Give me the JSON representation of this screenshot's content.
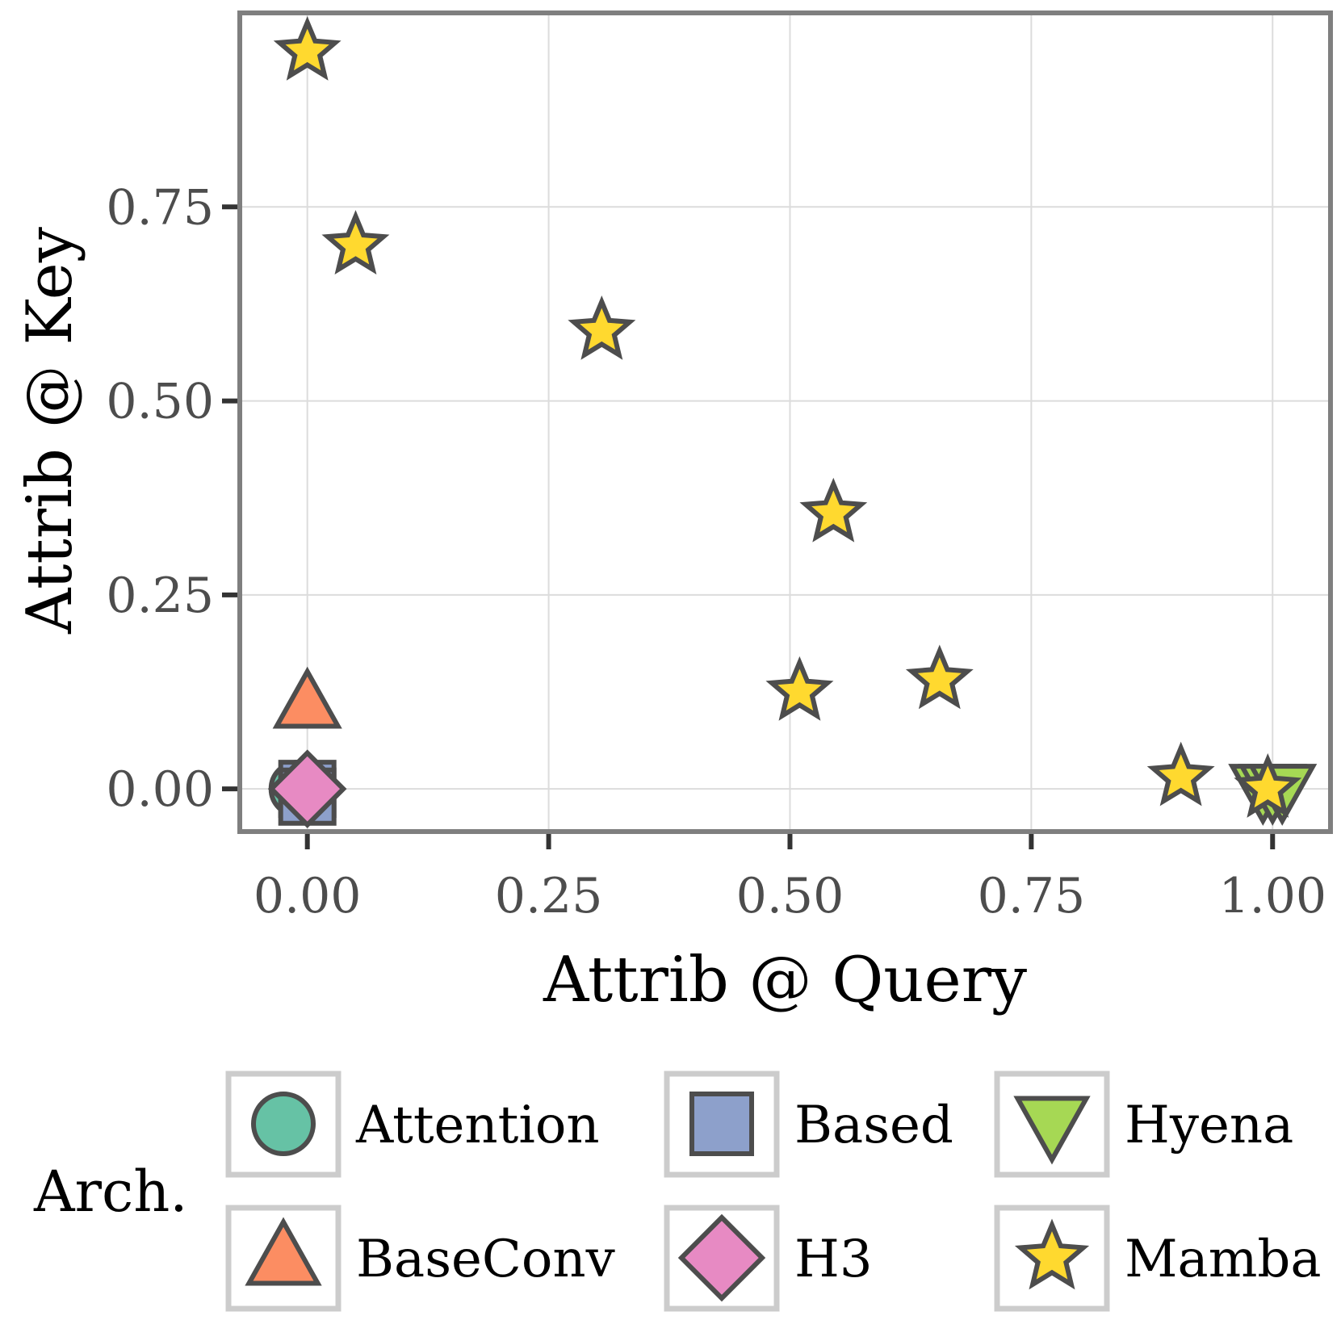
{
  "chart_data": {
    "type": "scatter",
    "title": "",
    "xlabel": "Attrib @ Query",
    "ylabel": "Attrib @ Key",
    "xlim": [
      -0.07,
      1.06
    ],
    "ylim": [
      -0.055,
      1.0
    ],
    "xticks": [
      0.0,
      0.25,
      0.5,
      0.75,
      1.0
    ],
    "xtick_labels": [
      "0.00",
      "0.25",
      "0.50",
      "0.75",
      "1.00"
    ],
    "yticks": [
      0.0,
      0.25,
      0.5,
      0.75
    ],
    "ytick_labels": [
      "0.00",
      "0.25",
      "0.50",
      "0.75"
    ],
    "grid": true,
    "legend": {
      "title": "Arch.",
      "placement": "bottom",
      "entries": [
        {
          "name": "Attention",
          "shape": "circle",
          "color": "#66c2a5"
        },
        {
          "name": "Based",
          "shape": "square",
          "color": "#8da0cb"
        },
        {
          "name": "Hyena",
          "shape": "triangle-down",
          "color": "#a6d854"
        },
        {
          "name": "BaseConv",
          "shape": "triangle-up",
          "color": "#fc8d62"
        },
        {
          "name": "H3",
          "shape": "diamond",
          "color": "#e78ac3"
        },
        {
          "name": "Mamba",
          "shape": "star",
          "color": "#ffd92f"
        }
      ]
    },
    "marker_edge_color": "#4d4d4d",
    "series": [
      {
        "name": "Attention",
        "shape": "circle",
        "color": "#66c2a5",
        "points": [
          [
            -0.01,
            0.0
          ],
          [
            0.0,
            0.0
          ]
        ]
      },
      {
        "name": "Based",
        "shape": "square",
        "color": "#8da0cb",
        "points": [
          [
            0.0,
            0.0
          ],
          [
            0.0,
            -0.01
          ]
        ]
      },
      {
        "name": "Hyena",
        "shape": "triangle-down",
        "color": "#a6d854",
        "points": [
          [
            0.99,
            0.0
          ],
          [
            1.0,
            0.0
          ],
          [
            1.01,
            0.0
          ]
        ]
      },
      {
        "name": "BaseConv",
        "shape": "triangle-up",
        "color": "#fc8d62",
        "points": [
          [
            0.0,
            0.11
          ]
        ]
      },
      {
        "name": "H3",
        "shape": "diamond",
        "color": "#e78ac3",
        "points": [
          [
            0.0,
            0.0
          ]
        ]
      },
      {
        "name": "Mamba",
        "shape": "star",
        "color": "#ffd92f",
        "points": [
          [
            0.0,
            0.95
          ],
          [
            0.05,
            0.7
          ],
          [
            0.305,
            0.59
          ],
          [
            0.545,
            0.355
          ],
          [
            0.51,
            0.125
          ],
          [
            0.655,
            0.14
          ],
          [
            0.905,
            0.015
          ],
          [
            0.995,
            0.0
          ]
        ]
      }
    ]
  }
}
